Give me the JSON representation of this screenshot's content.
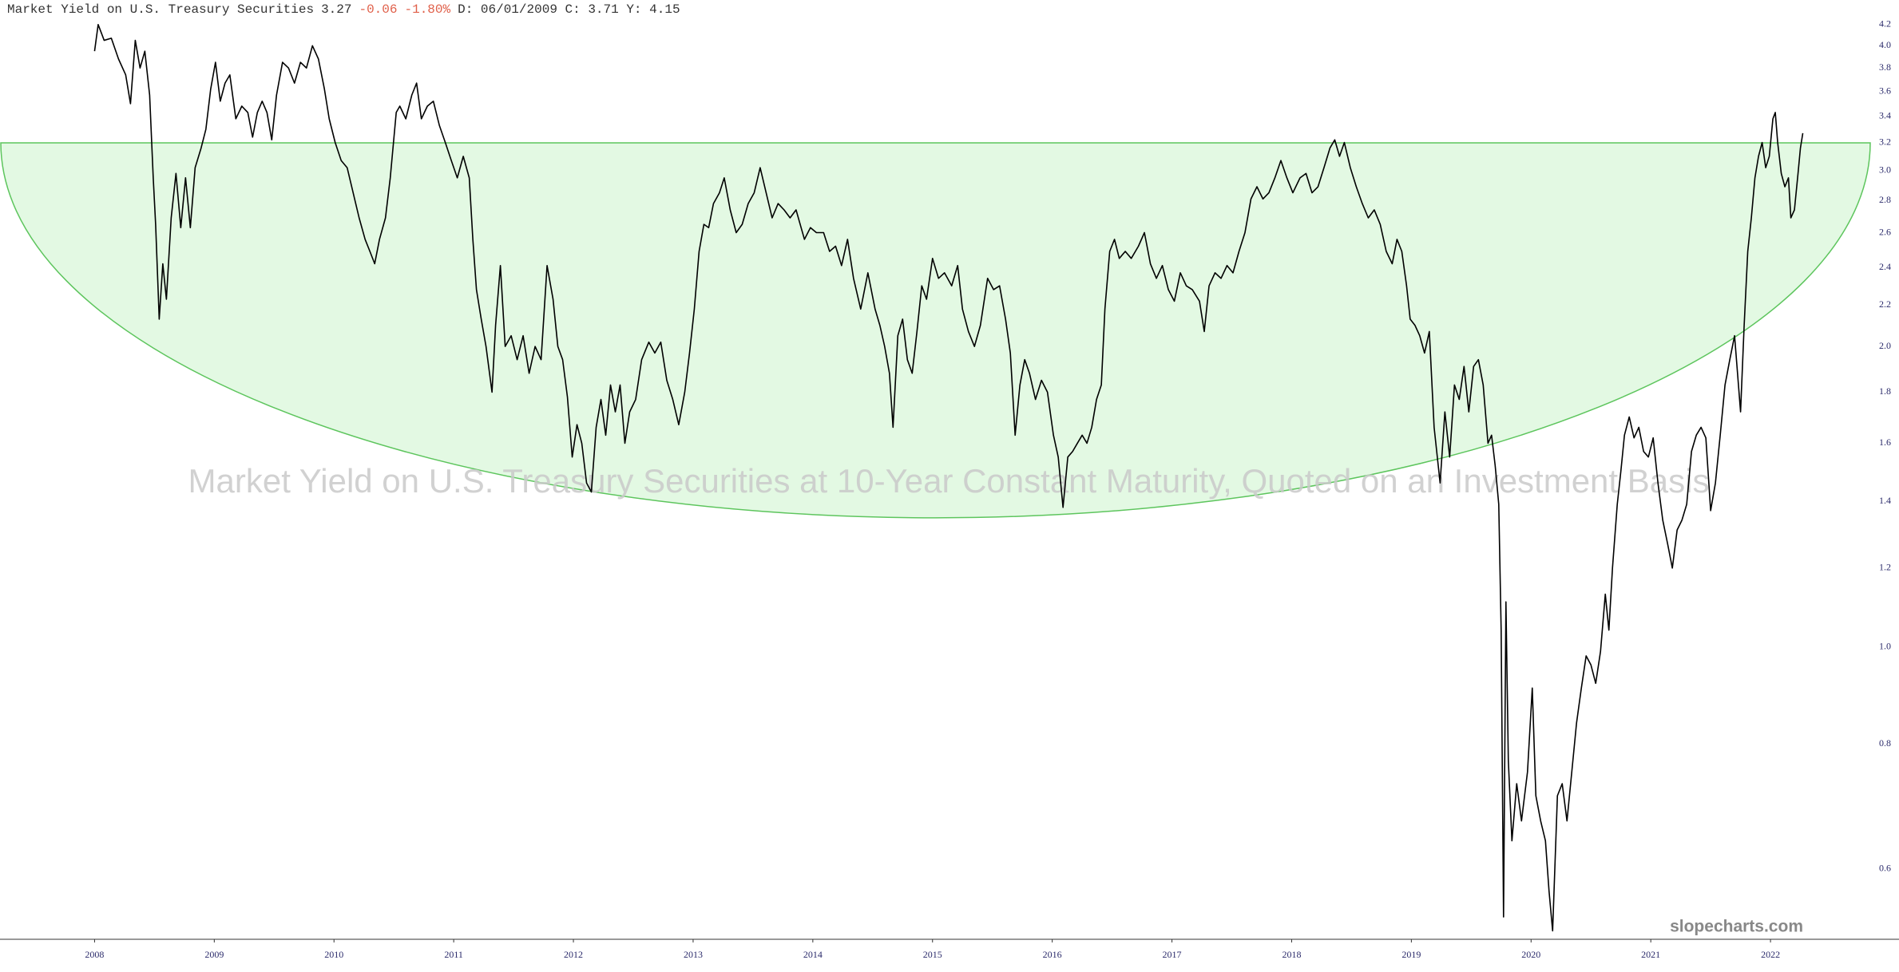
{
  "chart_data": {
    "type": "line",
    "title": "Market Yield on U.S. Treasury Securities",
    "quote": {
      "last": "3.27",
      "change": "-0.06",
      "change_percent": "-1.80%",
      "details": "D: 06/01/2009 C: 3.71 Y: 4.15"
    },
    "subtitle": "Market Yield on U.S. Treasury Securities at 10-Year Constant Maturity, Quoted on an Investment Basis",
    "brand": "slopecharts.com",
    "log_scale": true,
    "grid": false,
    "color": "#000000",
    "xlim": [
      2007.21,
      2022.84
    ],
    "xticks": [
      2008,
      2009,
      2010,
      2011,
      2012,
      2013,
      2014,
      2015,
      2016,
      2017,
      2018,
      2019,
      2020,
      2021,
      2022
    ],
    "ylim": [
      0.51,
      4.3
    ],
    "yticks": [
      0.6,
      0.8,
      {
        "value": 1,
        "label": "1.0"
      },
      1.2,
      1.4,
      1.6,
      1.8,
      {
        "value": 2,
        "label": "2.0"
      },
      2.2,
      2.4,
      2.6,
      2.8,
      {
        "value": 3,
        "label": "3.0"
      },
      3.2,
      3.4,
      3.6,
      3.8,
      {
        "value": 4,
        "label": "4.0"
      },
      4.2
    ],
    "x": [
      2008.0,
      2008.03,
      2008.08,
      2008.14,
      2008.2,
      2008.26,
      2008.3,
      2008.34,
      2008.38,
      2008.42,
      2008.46,
      2008.49,
      2008.51,
      2008.54,
      2008.57,
      2008.6,
      2008.64,
      2008.68,
      2008.72,
      2008.76,
      2008.8,
      2008.84,
      2008.89,
      2008.93,
      2008.97,
      2009.01,
      2009.05,
      2009.09,
      2009.13,
      2009.18,
      2009.23,
      2009.28,
      2009.32,
      2009.36,
      2009.4,
      2009.44,
      2009.48,
      2009.52,
      2009.57,
      2009.62,
      2009.67,
      2009.72,
      2009.77,
      2009.82,
      2009.87,
      2009.92,
      2009.96,
      2010.01,
      2010.06,
      2010.11,
      2010.16,
      2010.21,
      2010.26,
      2010.3,
      2010.34,
      2010.38,
      2010.43,
      2010.47,
      2010.52,
      2010.55,
      2010.6,
      2010.65,
      2010.69,
      2010.73,
      2010.78,
      2010.83,
      2010.88,
      2010.93,
      2010.98,
      2011.03,
      2011.08,
      2011.13,
      2011.16,
      2011.19,
      2011.23,
      2011.27,
      2011.32,
      2011.35,
      2011.39,
      2011.43,
      2011.48,
      2011.53,
      2011.58,
      2011.63,
      2011.68,
      2011.73,
      2011.78,
      2011.83,
      2011.87,
      2011.91,
      2011.95,
      2011.99,
      2012.03,
      2012.07,
      2012.11,
      2012.15,
      2012.19,
      2012.23,
      2012.27,
      2012.31,
      2012.35,
      2012.39,
      2012.43,
      2012.47,
      2012.52,
      2012.57,
      2012.63,
      2012.68,
      2012.73,
      2012.78,
      2012.83,
      2012.88,
      2012.93,
      2012.97,
      2013.01,
      2013.05,
      2013.09,
      2013.13,
      2013.17,
      2013.22,
      2013.26,
      2013.31,
      2013.36,
      2013.41,
      2013.46,
      2013.51,
      2013.56,
      2013.61,
      2013.66,
      2013.71,
      2013.76,
      2013.81,
      2013.86,
      2013.93,
      2013.98,
      2014.03,
      2014.09,
      2014.14,
      2014.19,
      2014.24,
      2014.29,
      2014.34,
      2014.4,
      2014.46,
      2014.52,
      2014.56,
      2014.6,
      2014.64,
      2014.67,
      2014.71,
      2014.75,
      2014.79,
      2014.83,
      2014.87,
      2014.91,
      2014.95,
      2015.0,
      2015.05,
      2015.1,
      2015.16,
      2015.21,
      2015.25,
      2015.3,
      2015.35,
      2015.4,
      2015.46,
      2015.51,
      2015.56,
      2015.61,
      2015.65,
      2015.69,
      2015.73,
      2015.77,
      2015.81,
      2015.86,
      2015.91,
      2015.96,
      2016.01,
      2016.05,
      2016.09,
      2016.13,
      2016.17,
      2016.21,
      2016.25,
      2016.29,
      2016.33,
      2016.37,
      2016.41,
      2016.44,
      2016.48,
      2016.52,
      2016.56,
      2016.61,
      2016.66,
      2016.72,
      2016.77,
      2016.82,
      2016.87,
      2016.92,
      2016.97,
      2017.02,
      2017.07,
      2017.12,
      2017.17,
      2017.23,
      2017.27,
      2017.31,
      2017.36,
      2017.41,
      2017.46,
      2017.51,
      2017.56,
      2017.61,
      2017.66,
      2017.71,
      2017.76,
      2017.81,
      2017.86,
      2017.91,
      2017.96,
      2018.01,
      2018.07,
      2018.12,
      2018.17,
      2018.22,
      2018.27,
      2018.32,
      2018.36,
      2018.4,
      2018.44,
      2018.49,
      2018.54,
      2018.59,
      2018.64,
      2018.69,
      2018.74,
      2018.79,
      2018.84,
      2018.88,
      2018.92,
      2018.96,
      2018.99,
      2019.03,
      2019.07,
      2019.11,
      2019.15,
      2019.19,
      2019.24,
      2019.28,
      2019.32,
      2019.36,
      2019.4,
      2019.44,
      2019.48,
      2019.52,
      2019.56,
      2019.6,
      2019.64,
      2019.67,
      2019.7,
      2019.73,
      2019.75,
      2019.77,
      2019.79,
      2019.81,
      2019.84,
      2019.88,
      2019.92,
      2019.97,
      2020.01,
      2020.04,
      2020.08,
      2020.12,
      2020.15,
      2020.18,
      2020.22,
      2020.26,
      2020.3,
      2020.34,
      2020.38,
      2020.42,
      2020.46,
      2020.5,
      2020.54,
      2020.58,
      2020.62,
      2020.65,
      2020.68,
      2020.72,
      2020.75,
      2020.78,
      2020.82,
      2020.86,
      2020.9,
      2020.94,
      2020.98,
      2021.02,
      2021.06,
      2021.1,
      2021.14,
      2021.18,
      2021.22,
      2021.26,
      2021.3,
      2021.34,
      2021.38,
      2021.42,
      2021.46,
      2021.5,
      2021.54,
      2021.58,
      2021.62,
      2021.66,
      2021.7,
      2021.75,
      2021.78,
      2021.81,
      2021.84,
      2021.87,
      2021.9,
      2021.93,
      2021.96,
      2021.99,
      2022.02,
      2022.04,
      2022.06,
      2022.09,
      2022.12,
      2022.15,
      2022.17,
      2022.2,
      2022.23,
      2022.25,
      2022.27
    ],
    "values": [
      3.95,
      4.2,
      4.05,
      4.07,
      3.88,
      3.74,
      3.5,
      4.05,
      3.8,
      3.95,
      3.57,
      2.95,
      2.65,
      2.13,
      2.42,
      2.23,
      2.69,
      2.98,
      2.63,
      2.95,
      2.63,
      3.02,
      3.16,
      3.3,
      3.62,
      3.85,
      3.52,
      3.67,
      3.74,
      3.38,
      3.48,
      3.43,
      3.24,
      3.43,
      3.52,
      3.43,
      3.22,
      3.57,
      3.85,
      3.8,
      3.67,
      3.85,
      3.8,
      4.0,
      3.88,
      3.62,
      3.38,
      3.2,
      3.07,
      3.02,
      2.85,
      2.69,
      2.56,
      2.49,
      2.42,
      2.56,
      2.69,
      2.95,
      3.43,
      3.48,
      3.38,
      3.57,
      3.67,
      3.38,
      3.48,
      3.52,
      3.33,
      3.2,
      3.07,
      2.95,
      3.1,
      2.95,
      2.56,
      2.28,
      2.13,
      2.0,
      1.8,
      2.1,
      2.41,
      2.0,
      2.05,
      1.94,
      2.05,
      1.88,
      2.0,
      1.94,
      2.41,
      2.23,
      2.0,
      1.94,
      1.78,
      1.55,
      1.67,
      1.6,
      1.46,
      1.43,
      1.66,
      1.77,
      1.63,
      1.83,
      1.72,
      1.83,
      1.6,
      1.72,
      1.77,
      1.94,
      2.02,
      1.97,
      2.02,
      1.85,
      1.77,
      1.67,
      1.8,
      1.97,
      2.18,
      2.49,
      2.65,
      2.63,
      2.78,
      2.85,
      2.95,
      2.74,
      2.6,
      2.65,
      2.78,
      2.85,
      3.02,
      2.85,
      2.69,
      2.78,
      2.74,
      2.69,
      2.74,
      2.56,
      2.63,
      2.6,
      2.6,
      2.49,
      2.52,
      2.41,
      2.56,
      2.34,
      2.18,
      2.37,
      2.18,
      2.1,
      2.0,
      1.88,
      1.66,
      2.05,
      2.13,
      1.94,
      1.88,
      2.07,
      2.3,
      2.23,
      2.45,
      2.34,
      2.37,
      2.3,
      2.41,
      2.18,
      2.07,
      2.0,
      2.1,
      2.34,
      2.28,
      2.3,
      2.13,
      1.97,
      1.63,
      1.83,
      1.94,
      1.88,
      1.77,
      1.85,
      1.8,
      1.63,
      1.55,
      1.38,
      1.55,
      1.57,
      1.6,
      1.63,
      1.6,
      1.66,
      1.77,
      1.83,
      2.18,
      2.49,
      2.56,
      2.45,
      2.49,
      2.45,
      2.52,
      2.6,
      2.42,
      2.34,
      2.41,
      2.28,
      2.22,
      2.37,
      2.3,
      2.28,
      2.22,
      2.07,
      2.3,
      2.37,
      2.34,
      2.41,
      2.37,
      2.49,
      2.6,
      2.81,
      2.89,
      2.81,
      2.85,
      2.95,
      3.07,
      2.95,
      2.85,
      2.95,
      2.98,
      2.85,
      2.89,
      3.02,
      3.16,
      3.22,
      3.1,
      3.2,
      3.02,
      2.89,
      2.78,
      2.69,
      2.74,
      2.65,
      2.49,
      2.42,
      2.56,
      2.49,
      2.3,
      2.13,
      2.1,
      2.05,
      1.97,
      2.07,
      1.66,
      1.46,
      1.72,
      1.55,
      1.83,
      1.77,
      1.91,
      1.72,
      1.91,
      1.94,
      1.83,
      1.6,
      1.63,
      1.52,
      1.39,
      1.04,
      0.537,
      1.11,
      0.77,
      0.64,
      0.73,
      0.67,
      0.75,
      0.91,
      0.71,
      0.67,
      0.64,
      0.57,
      0.52,
      0.71,
      0.73,
      0.67,
      0.75,
      0.84,
      0.91,
      0.98,
      0.96,
      0.92,
      0.99,
      1.13,
      1.04,
      1.2,
      1.39,
      1.5,
      1.63,
      1.7,
      1.62,
      1.66,
      1.57,
      1.55,
      1.62,
      1.46,
      1.34,
      1.27,
      1.2,
      1.31,
      1.34,
      1.39,
      1.57,
      1.63,
      1.66,
      1.62,
      1.37,
      1.46,
      1.63,
      1.83,
      1.94,
      2.05,
      1.72,
      2.1,
      2.49,
      2.69,
      2.95,
      3.1,
      3.2,
      3.02,
      3.1,
      3.38,
      3.43,
      3.2,
      2.98,
      2.89,
      2.95,
      2.69,
      2.74,
      2.98,
      3.16,
      3.27
    ]
  }
}
